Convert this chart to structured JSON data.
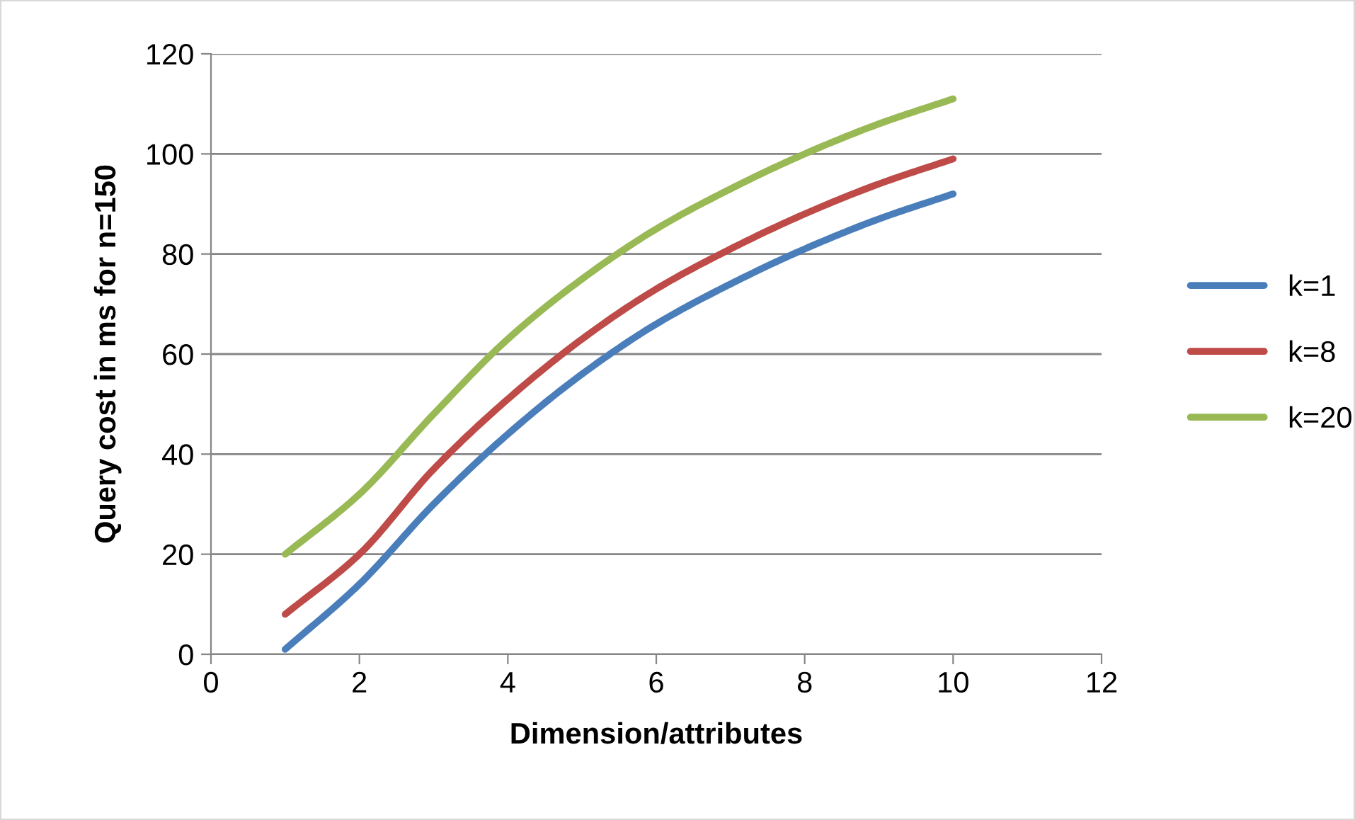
{
  "chart_data": {
    "type": "line",
    "xlabel": "Dimension/attributes",
    "ylabel": "Query cost in ms for n=150",
    "x": [
      1,
      2,
      3,
      4,
      5,
      6,
      7,
      8,
      9,
      10
    ],
    "series": [
      {
        "name": "k=1",
        "color": "#4a7ebb",
        "values": [
          1,
          14,
          30,
          44,
          56,
          66,
          74,
          81,
          87,
          92
        ]
      },
      {
        "name": "k=8",
        "color": "#be4b48",
        "values": [
          8,
          20,
          37,
          51,
          63,
          73,
          81,
          88,
          94,
          99
        ]
      },
      {
        "name": "k=20",
        "color": "#98b954",
        "values": [
          20,
          32,
          48,
          63,
          75,
          85,
          93,
          100,
          106,
          111
        ]
      }
    ],
    "xlim": [
      0,
      12
    ],
    "xticks": [
      0,
      2,
      4,
      6,
      8,
      10,
      12
    ],
    "ylim": [
      0,
      120
    ],
    "yticks": [
      0,
      20,
      40,
      60,
      80,
      100,
      120
    ],
    "grid": "y",
    "legend": "right",
    "marker": "none",
    "line_style": "solid"
  }
}
